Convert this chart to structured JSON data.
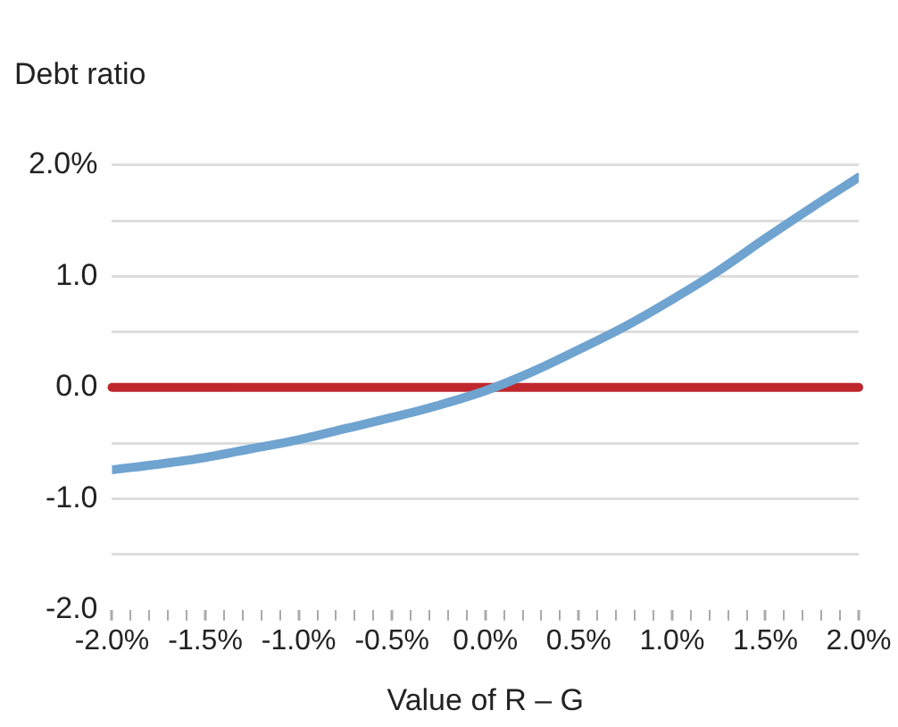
{
  "chart_data": {
    "type": "line",
    "ylabel": "Debt ratio",
    "xlabel": "Value of R – G",
    "x": [
      -2.0,
      -1.75,
      -1.5,
      -1.25,
      -1.0,
      -0.75,
      -0.5,
      -0.25,
      0.0,
      0.25,
      0.5,
      0.75,
      1.0,
      1.25,
      1.5,
      1.75,
      2.0
    ],
    "series": [
      {
        "color": "#6fa3d0",
        "values": [
          -0.74,
          -0.69,
          -0.63,
          -0.55,
          -0.47,
          -0.37,
          -0.27,
          -0.16,
          -0.03,
          0.14,
          0.34,
          0.55,
          0.79,
          1.05,
          1.34,
          1.62,
          1.89
        ]
      }
    ],
    "ref_lines": [
      {
        "axis": "y",
        "value": 0,
        "color": "#c0272d"
      }
    ],
    "xlim": [
      -2.0,
      2.0
    ],
    "xticks": [
      {
        "value": -2.0,
        "label": "-2.0%"
      },
      {
        "value": -1.9,
        "label": null
      },
      {
        "value": -1.8,
        "label": null
      },
      {
        "value": -1.7,
        "label": null
      },
      {
        "value": -1.6,
        "label": null
      },
      {
        "value": -1.5,
        "label": "-1.5%"
      },
      {
        "value": -1.4,
        "label": null
      },
      {
        "value": -1.3,
        "label": null
      },
      {
        "value": -1.2,
        "label": null
      },
      {
        "value": -1.1,
        "label": null
      },
      {
        "value": -1.0,
        "label": "-1.0%"
      },
      {
        "value": -0.9,
        "label": null
      },
      {
        "value": -0.8,
        "label": null
      },
      {
        "value": -0.7,
        "label": null
      },
      {
        "value": -0.6,
        "label": null
      },
      {
        "value": -0.5,
        "label": "-0.5%"
      },
      {
        "value": -0.4,
        "label": null
      },
      {
        "value": -0.3,
        "label": null
      },
      {
        "value": -0.2,
        "label": null
      },
      {
        "value": -0.1,
        "label": null
      },
      {
        "value": 0.0,
        "label": "0.0%"
      },
      {
        "value": 0.1,
        "label": null
      },
      {
        "value": 0.2,
        "label": null
      },
      {
        "value": 0.3,
        "label": null
      },
      {
        "value": 0.4,
        "label": null
      },
      {
        "value": 0.5,
        "label": "0.5%"
      },
      {
        "value": 0.6,
        "label": null
      },
      {
        "value": 0.7,
        "label": null
      },
      {
        "value": 0.8,
        "label": null
      },
      {
        "value": 0.9,
        "label": null
      },
      {
        "value": 1.0,
        "label": "1.0%"
      },
      {
        "value": 1.1,
        "label": null
      },
      {
        "value": 1.2,
        "label": null
      },
      {
        "value": 1.3,
        "label": null
      },
      {
        "value": 1.4,
        "label": null
      },
      {
        "value": 1.5,
        "label": "1.5%"
      },
      {
        "value": 1.6,
        "label": null
      },
      {
        "value": 1.7,
        "label": null
      },
      {
        "value": 1.8,
        "label": null
      },
      {
        "value": 1.9,
        "label": null
      },
      {
        "value": 2.0,
        "label": "2.0%"
      }
    ],
    "ylim": [
      -2.0,
      2.0
    ],
    "yticks": [
      {
        "value": -2.0,
        "label": "-2.0"
      },
      {
        "value": -1.5,
        "label": null
      },
      {
        "value": -1.0,
        "label": "-1.0"
      },
      {
        "value": -0.5,
        "label": null
      },
      {
        "value": 0.0,
        "label": "0.0"
      },
      {
        "value": 0.5,
        "label": null
      },
      {
        "value": 1.0,
        "label": "1.0"
      },
      {
        "value": 1.5,
        "label": null
      },
      {
        "value": 2.0,
        "label": "2.0%"
      }
    ],
    "grid": "y",
    "legend": false,
    "marker": "none",
    "line_style": "solid"
  }
}
